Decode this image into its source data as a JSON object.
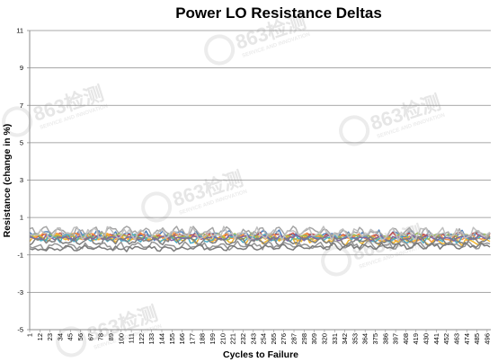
{
  "watermark": {
    "text": "863检测",
    "subtext": "SERVICE AND INNOVATION"
  },
  "chart_data": {
    "type": "line",
    "title": "Power LO Resistance Deltas",
    "xlabel": "Cycles to Failure",
    "ylabel": "Resistance (change in %)",
    "ylim": [
      -5,
      11
    ],
    "yticks": [
      -5,
      -3,
      -1,
      1,
      3,
      5,
      7,
      9,
      11
    ],
    "x_tick_labels": [
      "1",
      "12",
      "23",
      "34",
      "45",
      "56",
      "67",
      "78",
      "89",
      "100",
      "111",
      "122",
      "133",
      "144",
      "155",
      "166",
      "177",
      "188",
      "199",
      "210",
      "221",
      "232",
      "243",
      "254",
      "265",
      "276",
      "287",
      "298",
      "309",
      "320",
      "331",
      "342",
      "353",
      "364",
      "375",
      "386",
      "397",
      "408",
      "419",
      "430",
      "441",
      "452",
      "463",
      "474",
      "485",
      "496"
    ],
    "x_range": [
      1,
      500
    ],
    "grid": "horizontal",
    "legend": "none",
    "series": [
      {
        "color": "#4f81bd",
        "base": 0.05,
        "amp": 0.22,
        "slope": 0.0,
        "seed": 1
      },
      {
        "color": "#c0504d",
        "base": 0.02,
        "amp": 0.15,
        "slope": 0.0,
        "seed": 2
      },
      {
        "color": "#f79646",
        "base": 0.0,
        "amp": 0.18,
        "slope": -0.0002,
        "seed": 3
      },
      {
        "color": "#f2b72e",
        "base": -0.05,
        "amp": 0.2,
        "slope": -0.0005,
        "seed": 4
      },
      {
        "color": "#9bbb59",
        "base": -0.02,
        "amp": 0.16,
        "slope": 0.0,
        "seed": 5
      },
      {
        "color": "#4bacc6",
        "base": -0.12,
        "amp": 0.2,
        "slope": 0.0,
        "seed": 6
      },
      {
        "color": "#8064a2",
        "base": -0.08,
        "amp": 0.14,
        "slope": 0.0,
        "seed": 7
      },
      {
        "color": "#a5a5a5",
        "base": 0.3,
        "amp": 0.25,
        "slope": -0.0003,
        "seed": 8
      },
      {
        "color": "#bfbfbf",
        "base": 0.15,
        "amp": 0.3,
        "slope": 0.0,
        "seed": 9
      },
      {
        "color": "#7f7f7f",
        "base": -0.25,
        "amp": 0.22,
        "slope": 0.0,
        "seed": 10
      },
      {
        "color": "#969696",
        "base": -0.55,
        "amp": 0.2,
        "slope": 0.0002,
        "seed": 11
      },
      {
        "color": "#7a7a7a",
        "base": -0.7,
        "amp": 0.15,
        "slope": 0.0004,
        "seed": 12
      }
    ]
  }
}
